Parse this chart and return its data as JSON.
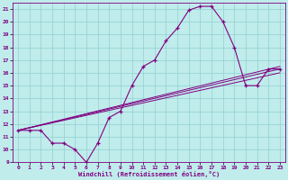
{
  "xlabel": "Windchill (Refroidissement éolien,°C)",
  "xlim": [
    -0.5,
    23.5
  ],
  "ylim": [
    9,
    21.5
  ],
  "yticks": [
    9,
    10,
    11,
    12,
    13,
    14,
    15,
    16,
    17,
    18,
    19,
    20,
    21
  ],
  "xticks": [
    0,
    1,
    2,
    3,
    4,
    5,
    6,
    7,
    8,
    9,
    10,
    11,
    12,
    13,
    14,
    15,
    16,
    17,
    18,
    19,
    20,
    21,
    22,
    23
  ],
  "line_color": "#800080",
  "bg_color": "#c0ecec",
  "grid_color": "#90d0d0",
  "line1_x": [
    0,
    1,
    2,
    3,
    4,
    5,
    6,
    7,
    8,
    9,
    10,
    11,
    12,
    13,
    14,
    15,
    16,
    17,
    18,
    19,
    20,
    21,
    22,
    23
  ],
  "line1_y": [
    11.5,
    11.5,
    11.5,
    10.5,
    10.5,
    10.0,
    9.0,
    10.5,
    12.5,
    13.0,
    15.0,
    16.5,
    17.0,
    18.5,
    19.5,
    20.9,
    21.2,
    21.2,
    20.0,
    18.0,
    15.0,
    15.0,
    16.3,
    16.3
  ],
  "line2_x": [
    0,
    23
  ],
  "line2_y": [
    11.5,
    16.3
  ],
  "line3_x": [
    0,
    23
  ],
  "line3_y": [
    11.5,
    16.0
  ],
  "line4_x": [
    0,
    23
  ],
  "line4_y": [
    11.5,
    16.5
  ]
}
